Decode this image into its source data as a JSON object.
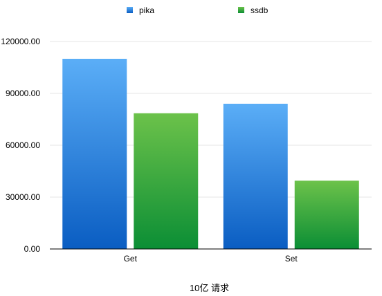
{
  "chart_data": {
    "type": "bar",
    "title": "",
    "xlabel": "10亿 请求",
    "ylabel": "",
    "categories": [
      "Get",
      "Set"
    ],
    "series": [
      {
        "name": "pika",
        "values": [
          110000,
          84000
        ],
        "color_top": "#5BAEF7",
        "color_bottom": "#0A5DC2"
      },
      {
        "name": "ssdb",
        "values": [
          78500,
          39500
        ],
        "color_top": "#6CC24A",
        "color_bottom": "#0B8E35"
      }
    ],
    "ylim": [
      0,
      120000
    ],
    "yticks": [
      0,
      30000,
      60000,
      90000,
      120000
    ],
    "ytick_labels": [
      "0.00",
      "30000.00",
      "60000.00",
      "90000.00",
      "120000.00"
    ],
    "grid": true,
    "legend_position": "top"
  }
}
